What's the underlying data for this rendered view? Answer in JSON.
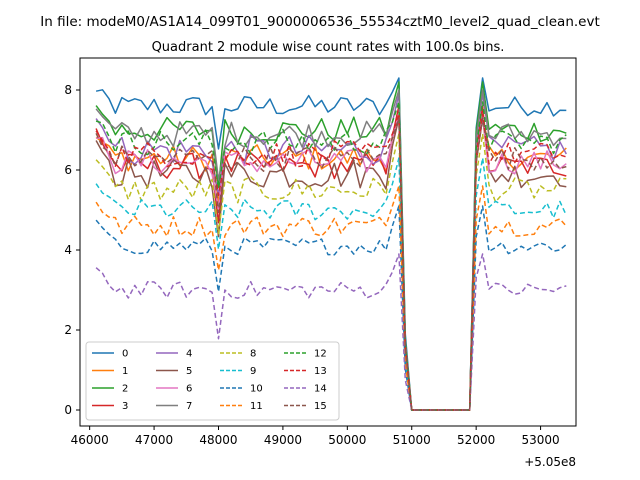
{
  "chart_data": {
    "type": "line",
    "suptitle": "In file: modeM0/AS1A14_099T01_9000006536_55534cztM0_level2_quad_clean.evt",
    "title": "Quadrant 2 module wise count rates with 100.0s bins.",
    "xlabel": "",
    "ylabel": "",
    "x_offset_label": "+5.05e8",
    "xlim": [
      45850,
      53550
    ],
    "ylim": [
      -0.4,
      8.8
    ],
    "xticks": [
      46000,
      47000,
      48000,
      49000,
      50000,
      51000,
      52000,
      53000
    ],
    "yticks": [
      0,
      2,
      4,
      6,
      8
    ],
    "x_segment_1": [
      46100,
      50800
    ],
    "x_step": 100,
    "x_gap": [
      50900,
      51900
    ],
    "x_segment_2": [
      52000,
      53450
    ],
    "legend_position": "lower-left",
    "series": [
      {
        "name": "0",
        "style": "solid",
        "color": "#1f77b4",
        "base": 7.6,
        "noise": 0.25,
        "peak": 8.3,
        "end": 2.5
      },
      {
        "name": "1",
        "style": "solid",
        "color": "#ff7f0e",
        "base": 6.3,
        "noise": 0.3,
        "peak": 7.3,
        "end": 2.0
      },
      {
        "name": "2",
        "style": "solid",
        "color": "#2ca02c",
        "base": 7.0,
        "noise": 0.3,
        "peak": 8.2,
        "end": 2.6
      },
      {
        "name": "3",
        "style": "solid",
        "color": "#d62728",
        "base": 6.1,
        "noise": 0.3,
        "peak": 7.6,
        "end": 2.3
      },
      {
        "name": "4",
        "style": "solid",
        "color": "#9467bd",
        "base": 6.5,
        "noise": 0.35,
        "peak": 7.9,
        "end": 2.5
      },
      {
        "name": "5",
        "style": "solid",
        "color": "#8c564b",
        "base": 5.9,
        "noise": 0.35,
        "peak": 7.3,
        "end": 2.2
      },
      {
        "name": "6",
        "style": "solid",
        "color": "#e377c2",
        "base": 6.2,
        "noise": 0.3,
        "peak": 7.4,
        "end": 2.3
      },
      {
        "name": "7",
        "style": "solid",
        "color": "#7f7f7f",
        "base": 6.9,
        "noise": 0.3,
        "peak": 8.0,
        "end": 2.5
      },
      {
        "name": "8",
        "style": "dashed",
        "color": "#bcbd22",
        "base": 5.5,
        "noise": 0.3,
        "peak": 6.9,
        "end": 2.0
      },
      {
        "name": "9",
        "style": "dashed",
        "color": "#17becf",
        "base": 5.0,
        "noise": 0.25,
        "peak": 6.3,
        "end": 2.0
      },
      {
        "name": "10",
        "style": "dashed",
        "color": "#1f77b4",
        "base": 4.1,
        "noise": 0.2,
        "peak": 5.1,
        "end": 1.6
      },
      {
        "name": "11",
        "style": "dashed",
        "color": "#ff7f0e",
        "base": 4.6,
        "noise": 0.25,
        "peak": 5.6,
        "end": 1.8
      },
      {
        "name": "12",
        "style": "dashed",
        "color": "#2ca02c",
        "base": 6.7,
        "noise": 0.3,
        "peak": 7.7,
        "end": 2.4
      },
      {
        "name": "13",
        "style": "dashed",
        "color": "#d62728",
        "base": 6.4,
        "noise": 0.3,
        "peak": 7.4,
        "end": 2.3
      },
      {
        "name": "14",
        "style": "dashed",
        "color": "#9467bd",
        "base": 3.0,
        "noise": 0.2,
        "peak": 3.9,
        "end": 1.1
      },
      {
        "name": "15",
        "style": "dashed",
        "color": "#8c564b",
        "base": 6.3,
        "noise": 0.3,
        "peak": 7.3,
        "end": 2.3
      }
    ]
  }
}
